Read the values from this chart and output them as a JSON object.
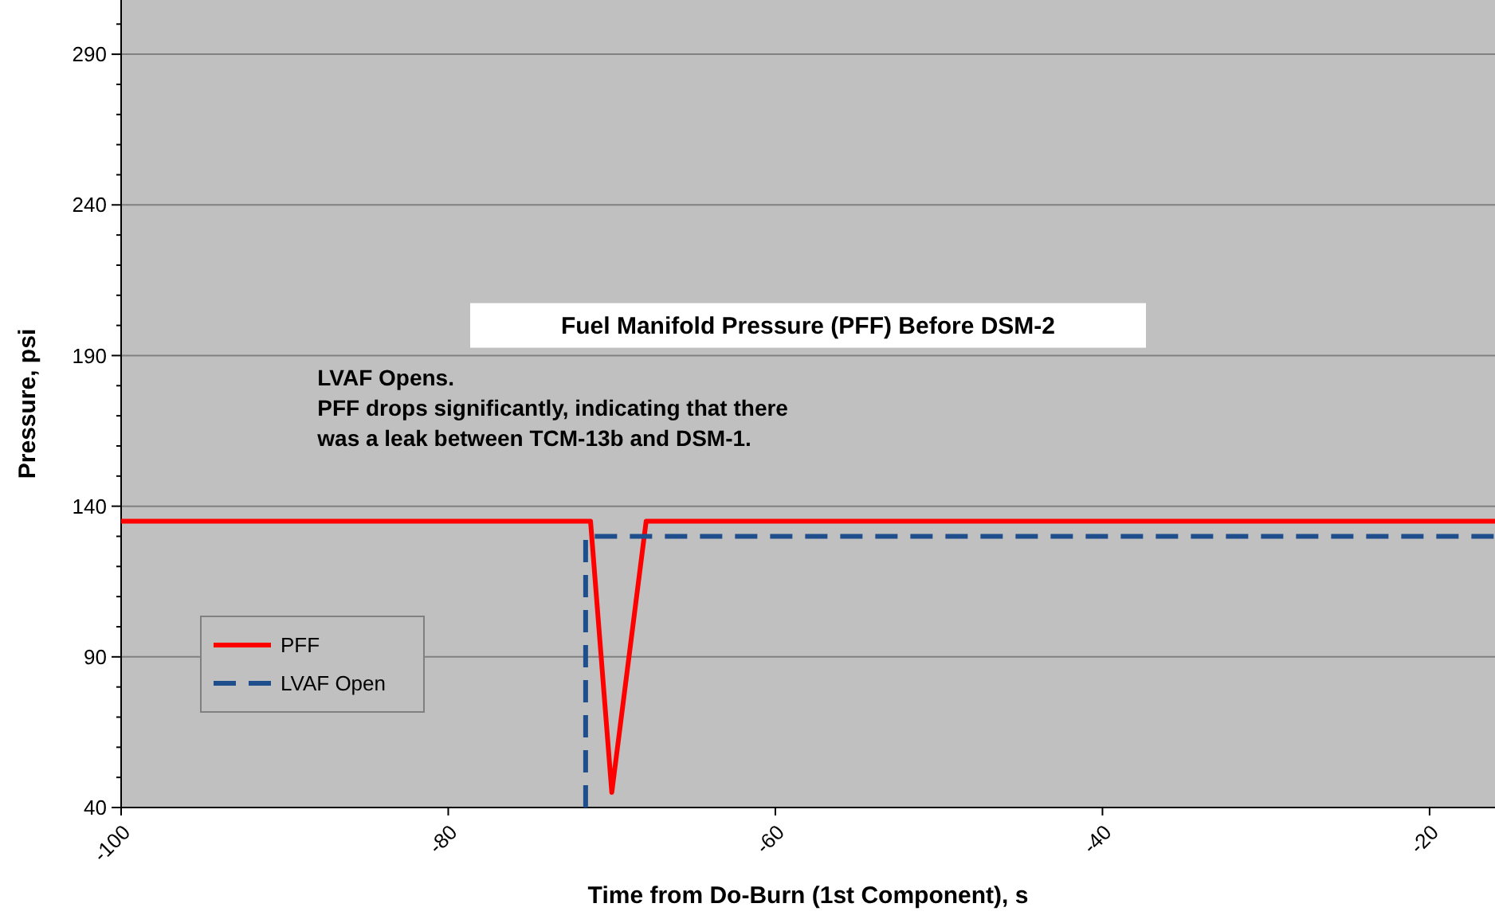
{
  "chart_data": {
    "type": "line",
    "title": "Fuel Manifold Pressure (PFF) Before DSM-2",
    "xlabel": "Time from Do-Burn (1st Component), s",
    "ylabel": "Pressure, psi",
    "annotations": [
      "LVAF Opens.\nPFF drops significantly, indicating that there\nwas a leak between TCM-13b and DSM-1."
    ],
    "xlim": [
      -100,
      -16
    ],
    "xticks": [
      -100,
      -80,
      -60,
      -40,
      -20
    ],
    "ylim": [
      40,
      308
    ],
    "yticks": [
      40,
      {
        "value": 50,
        "label": null
      },
      {
        "value": 60,
        "label": null
      },
      {
        "value": 70,
        "label": null
      },
      {
        "value": 80,
        "label": null
      },
      90,
      {
        "value": 100,
        "label": null
      },
      {
        "value": 110,
        "label": null
      },
      {
        "value": 120,
        "label": null
      },
      {
        "value": 130,
        "label": null
      },
      140,
      {
        "value": 150,
        "label": null
      },
      {
        "value": 160,
        "label": null
      },
      {
        "value": 170,
        "label": null
      },
      {
        "value": 180,
        "label": null
      },
      190,
      {
        "value": 200,
        "label": null
      },
      {
        "value": 210,
        "label": null
      },
      {
        "value": 220,
        "label": null
      },
      {
        "value": 230,
        "label": null
      },
      240,
      {
        "value": 250,
        "label": null
      },
      {
        "value": 260,
        "label": null
      },
      {
        "value": 270,
        "label": null
      },
      {
        "value": 280,
        "label": null
      },
      290,
      {
        "value": 300,
        "label": null
      }
    ],
    "grid": "y",
    "legend": "bottom left",
    "series": [
      {
        "name": "PFF",
        "color": "#ff0000",
        "line_style": "solid",
        "x": [
          -100,
          -71.3,
          -70,
          -67.9,
          -16
        ],
        "values": [
          135,
          135,
          45,
          135,
          135
        ]
      },
      {
        "name": "LVAF Open",
        "color": "#1f4e8c",
        "line_style": "dashed",
        "x": [
          -71.6,
          -71.6,
          -16
        ],
        "values": [
          40,
          130,
          130
        ]
      }
    ]
  }
}
